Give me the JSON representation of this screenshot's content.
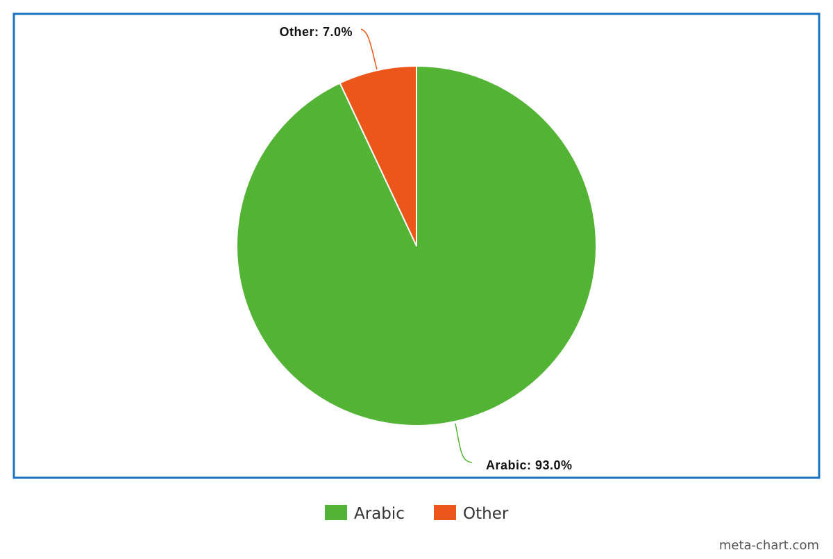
{
  "chart_data": {
    "type": "pie",
    "title": "",
    "slices": [
      {
        "label": "Arabic",
        "value": 93.0,
        "display": "Arabic: 93.0%",
        "color": "#52b334"
      },
      {
        "label": "Other",
        "value": 7.0,
        "display": "Other: 7.0%",
        "color": "#ec561b"
      }
    ],
    "legend": {
      "placement": "bottom-center",
      "items": [
        {
          "label": "Arabic",
          "color": "#52b334"
        },
        {
          "label": "Other",
          "color": "#ec561b"
        }
      ]
    },
    "frame_color": "#1a73c0"
  },
  "watermark": "meta-chart.com"
}
